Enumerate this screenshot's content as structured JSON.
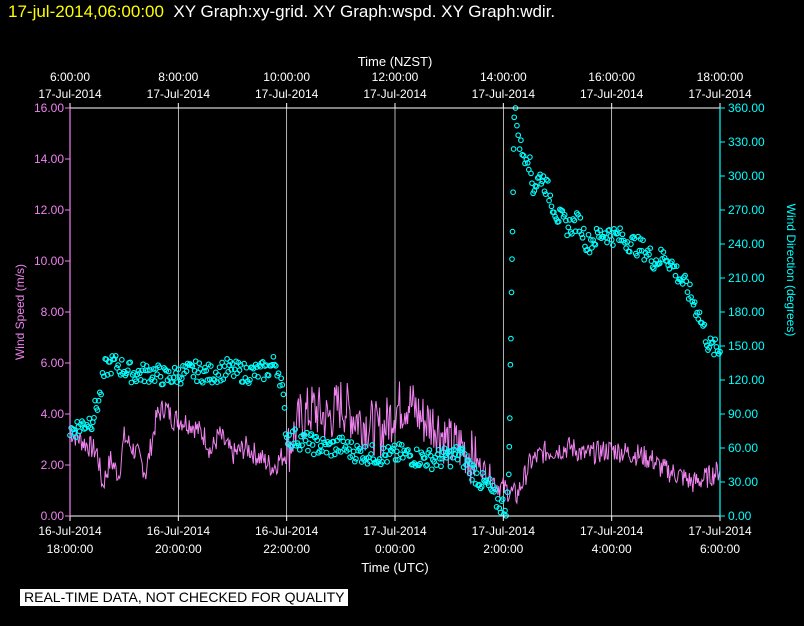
{
  "header": {
    "timestamp": "17-jul-2014,06:00:00",
    "graphs": "XY Graph:xy-grid.  XY Graph:wspd.  XY Graph:wdir."
  },
  "disclaimer": "REAL-TIME DATA, NOT CHECKED FOR QUALITY",
  "colors": {
    "wspd": "#ee82ee",
    "wdir": "#00ffff",
    "grid": "#ffffff",
    "background": "#000000"
  },
  "chart_data": {
    "type": "line",
    "x_top_label": "Time (NZST)",
    "x_bottom_label": "Time (UTC)",
    "ylabel_left": "Wind Speed (m/s)",
    "ylabel_right": "Wind Direction (degrees)",
    "xlim_hours_utc": [
      18,
      30
    ],
    "ylim_left": [
      0,
      16
    ],
    "ylim_right": [
      0,
      360
    ],
    "grid": true,
    "ticks_top": [
      {
        "pos": 18,
        "time": "6:00:00",
        "date": "17-Jul-2014"
      },
      {
        "pos": 20,
        "time": "8:00:00",
        "date": "17-Jul-2014"
      },
      {
        "pos": 22,
        "time": "10:00:00",
        "date": "17-Jul-2014"
      },
      {
        "pos": 24,
        "time": "12:00:00",
        "date": "17-Jul-2014"
      },
      {
        "pos": 26,
        "time": "14:00:00",
        "date": "17-Jul-2014"
      },
      {
        "pos": 28,
        "time": "16:00:00",
        "date": "17-Jul-2014"
      },
      {
        "pos": 30,
        "time": "18:00:00",
        "date": "17-Jul-2014"
      }
    ],
    "ticks_bottom": [
      {
        "pos": 18,
        "date": "16-Jul-2014",
        "time": "18:00:00"
      },
      {
        "pos": 20,
        "date": "16-Jul-2014",
        "time": "20:00:00"
      },
      {
        "pos": 22,
        "date": "16-Jul-2014",
        "time": "22:00:00"
      },
      {
        "pos": 24,
        "date": "17-Jul-2014",
        "time": "0:00:00"
      },
      {
        "pos": 26,
        "date": "17-Jul-2014",
        "time": "2:00:00"
      },
      {
        "pos": 28,
        "date": "17-Jul-2014",
        "time": "4:00:00"
      },
      {
        "pos": 30,
        "date": "17-Jul-2014",
        "time": "6:00:00"
      }
    ],
    "ticks_left": [
      "0.00",
      "2.00",
      "4.00",
      "6.00",
      "8.00",
      "10.00",
      "12.00",
      "14.00",
      "16.00"
    ],
    "ticks_right": [
      "0.00",
      "30.00",
      "60.00",
      "90.00",
      "120.00",
      "150.00",
      "180.00",
      "210.00",
      "240.00",
      "270.00",
      "300.00",
      "330.00",
      "360.00"
    ],
    "series": [
      {
        "name": "wspd",
        "style": "line",
        "x": [
          18.0,
          18.25,
          18.5,
          18.6,
          18.75,
          18.9,
          19.0,
          19.1,
          19.25,
          19.4,
          19.5,
          19.6,
          19.75,
          19.9,
          20.0,
          20.25,
          20.5,
          20.6,
          20.75,
          21.0,
          21.25,
          21.5,
          21.75,
          21.9,
          22.0,
          22.25,
          22.5,
          22.75,
          23.0,
          23.25,
          23.5,
          23.75,
          24.0,
          24.25,
          24.5,
          24.75,
          25.0,
          25.25,
          25.5,
          25.75,
          25.9,
          26.0,
          26.25,
          26.5,
          26.75,
          27.0,
          27.25,
          27.5,
          27.75,
          28.0,
          28.25,
          28.5,
          28.75,
          28.9,
          29.0,
          29.25,
          29.5,
          29.75,
          30.0
        ],
        "y": [
          3.3,
          2.9,
          2.5,
          1.2,
          2.2,
          1.6,
          3.1,
          2.8,
          2.4,
          1.7,
          2.8,
          3.9,
          4.3,
          3.8,
          3.8,
          3.6,
          3.1,
          2.5,
          3.2,
          2.4,
          2.7,
          2.3,
          1.9,
          2.3,
          2.5,
          3.8,
          4.2,
          3.8,
          4.4,
          3.9,
          3.6,
          3.3,
          4.2,
          4.5,
          3.8,
          3.6,
          2.8,
          2.7,
          2.1,
          1.6,
          1.2,
          1.1,
          0.8,
          2.1,
          2.5,
          2.6,
          2.7,
          2.4,
          2.5,
          2.6,
          2.5,
          2.4,
          2.2,
          1.9,
          1.8,
          1.6,
          1.3,
          1.5,
          1.8
        ]
      },
      {
        "name": "wdir",
        "style": "points",
        "x": [
          18.0,
          18.2,
          18.4,
          18.55,
          18.65,
          18.8,
          19.0,
          19.2,
          19.5,
          19.8,
          20.0,
          20.3,
          20.6,
          20.9,
          21.0,
          21.3,
          21.6,
          21.8,
          21.9,
          22.0,
          22.2,
          22.5,
          22.8,
          23.0,
          23.3,
          23.6,
          23.9,
          24.1,
          24.4,
          24.7,
          25.0,
          25.2,
          25.4,
          25.6,
          25.75,
          25.85,
          25.95,
          26.05,
          26.1,
          26.2,
          26.25,
          26.3,
          26.35,
          26.45,
          26.55,
          26.7,
          26.8,
          27.0,
          27.2,
          27.4,
          27.55,
          27.7,
          27.85,
          28.0,
          28.2,
          28.4,
          28.6,
          28.8,
          29.0,
          29.2,
          29.4,
          29.6,
          29.8,
          30.0
        ],
        "y": [
          75,
          80,
          85,
          105,
          130,
          135,
          130,
          125,
          127,
          122,
          125,
          128,
          125,
          130,
          128,
          126,
          128,
          135,
          120,
          70,
          68,
          63,
          60,
          62,
          56,
          54,
          53,
          55,
          52,
          50,
          52,
          55,
          42,
          30,
          25,
          15,
          10,
          8,
          30,
          355,
          350,
          330,
          320,
          320,
          290,
          300,
          290,
          265,
          255,
          260,
          240,
          245,
          250,
          248,
          245,
          240,
          235,
          225,
          230,
          215,
          200,
          180,
          150,
          145
        ]
      }
    ]
  }
}
